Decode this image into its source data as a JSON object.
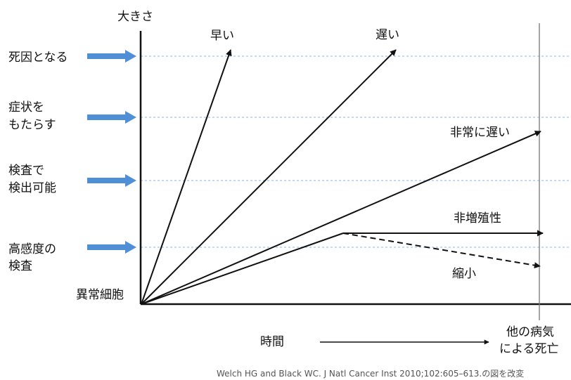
{
  "diagram": {
    "y_axis_label": "大きさ",
    "x_axis_label": "時間",
    "origin_label": "異常細胞",
    "death_other_cause": [
      "他の病気",
      "による死亡"
    ],
    "levels": [
      {
        "lines": [
          "死因となる"
        ]
      },
      {
        "lines": [
          "症状を",
          "もたらす"
        ]
      },
      {
        "lines": [
          "検査で",
          "検出可能"
        ]
      },
      {
        "lines": [
          "高感度の",
          "検査"
        ]
      }
    ],
    "growth_paths": [
      {
        "label": "早い"
      },
      {
        "label": "遅い"
      },
      {
        "label": "非常に遅い"
      },
      {
        "label": "非増殖性"
      },
      {
        "label": "縮小",
        "style": "dashed"
      }
    ],
    "citation": "Welch HG and Black WC. J Natl Cancer Inst 2010;102:605–613.の図を改変",
    "colors": {
      "level_arrow": "#4f8fd6",
      "dotted_line": "#9fc3e6",
      "line": "#111111"
    }
  }
}
